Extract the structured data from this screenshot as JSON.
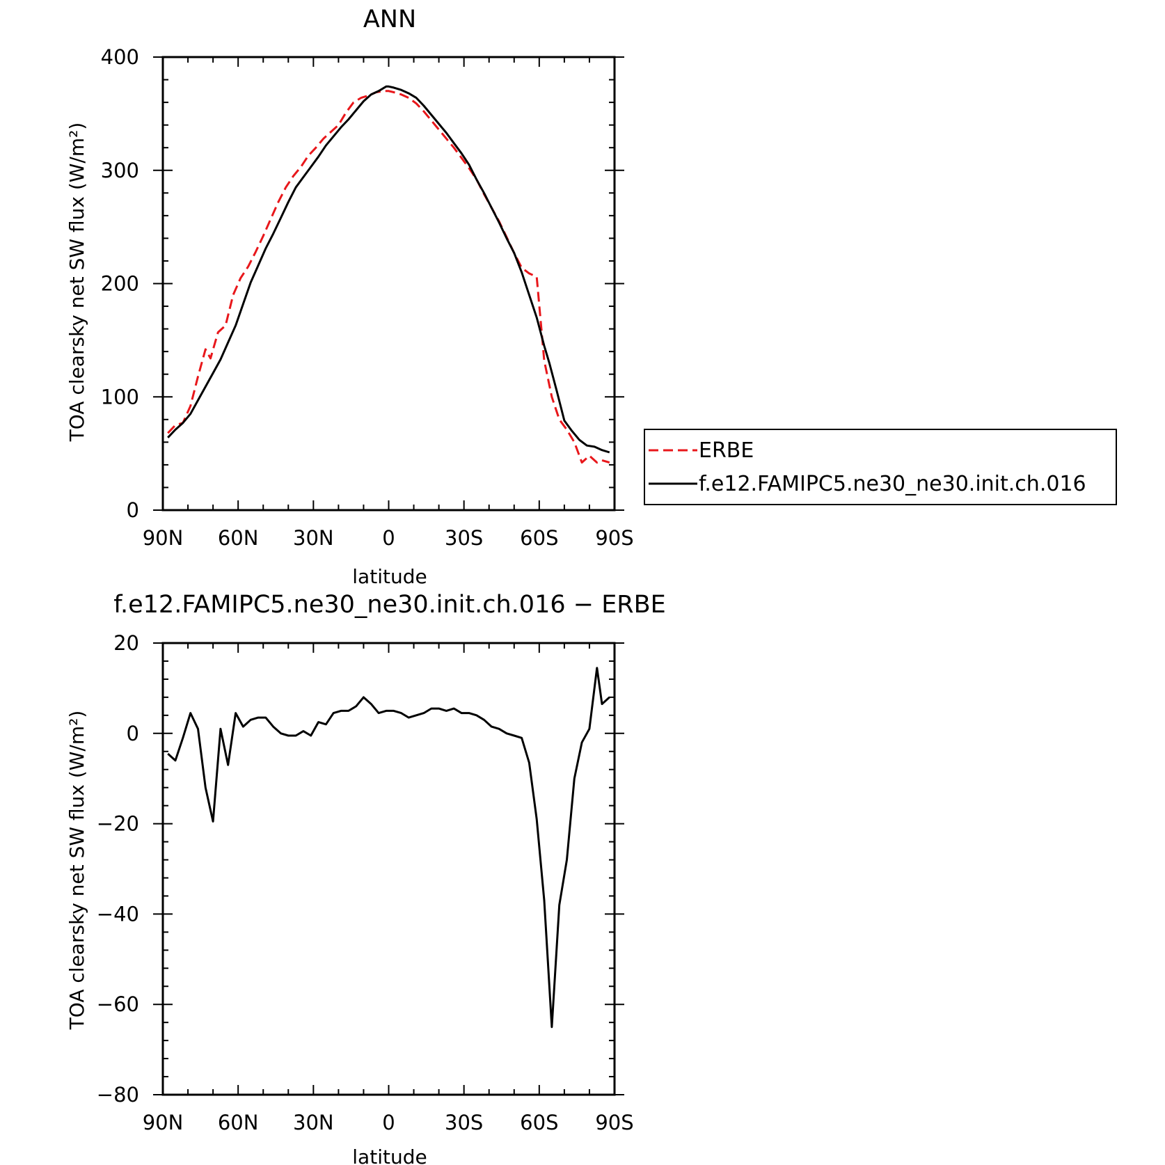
{
  "chart_data": [
    {
      "type": "line",
      "title": "ANN",
      "xlabel": "latitude",
      "ylabel": "TOA clearsky net SW flux (W/m²)",
      "xlim": [
        90,
        -90
      ],
      "ylim": [
        0,
        400
      ],
      "x_ticks": [
        90,
        60,
        30,
        0,
        -30,
        -60,
        -90
      ],
      "x_tick_labels": [
        "90N",
        "60N",
        "30N",
        "0",
        "30S",
        "60S",
        "90S"
      ],
      "y_ticks": [
        0,
        100,
        200,
        300,
        400
      ],
      "y_tick_labels": [
        "0",
        "100",
        "200",
        "300",
        "400"
      ],
      "grid": false,
      "legend_position": "right, outside plot",
      "series": [
        {
          "name": "ERBE",
          "color": "#e8171b",
          "style": "dashed",
          "x": [
            88,
            85,
            82,
            79,
            76,
            73,
            71,
            68,
            65,
            62,
            59,
            56,
            53,
            50,
            47,
            44,
            41,
            38,
            35,
            32,
            29,
            26,
            23,
            20,
            17,
            14,
            11,
            8,
            5,
            2,
            0,
            -2,
            -5,
            -8,
            -11,
            -14,
            -17,
            -20,
            -23,
            -26,
            -29,
            -32,
            -35,
            -38,
            -41,
            -44,
            -47,
            -50,
            -53,
            -56,
            -59,
            -62,
            -65,
            -68,
            -71,
            -74,
            -77,
            -80,
            -83,
            -85,
            -88
          ],
          "y": [
            68,
            75,
            77,
            92,
            118,
            142,
            134,
            157,
            163,
            190,
            205,
            215,
            228,
            242,
            257,
            272,
            285,
            295,
            303,
            313,
            320,
            328,
            334,
            340,
            351,
            360,
            364,
            366,
            369,
            370,
            370,
            369,
            367,
            364,
            359,
            352,
            344,
            336,
            328,
            320,
            311,
            302,
            292,
            279,
            267,
            255,
            241,
            227,
            214,
            209,
            206,
            132,
            100,
            80,
            71,
            60,
            42,
            48,
            42,
            44,
            42
          ]
        },
        {
          "name": "f.e12.FAMIPC5.ne30_ne30.init.ch.016",
          "color": "#000000",
          "style": "solid",
          "x": [
            88,
            85,
            82,
            79,
            76,
            73,
            70,
            67,
            64,
            61,
            58,
            55,
            52,
            49,
            46,
            43,
            40,
            37,
            34,
            31,
            28,
            25,
            22,
            19,
            16,
            13,
            10,
            7,
            4,
            1,
            0,
            -2,
            -5,
            -8,
            -11,
            -14,
            -17,
            -20,
            -23,
            -26,
            -29,
            -32,
            -35,
            -38,
            -41,
            -44,
            -47,
            -50,
            -53,
            -56,
            -59,
            -62,
            -64,
            -67,
            -70,
            -73,
            -76,
            -79,
            -82,
            -85,
            -88
          ],
          "y": [
            64,
            71,
            77,
            85,
            97,
            109,
            121,
            133,
            148,
            163,
            182,
            201,
            216,
            231,
            244,
            258,
            272,
            285,
            294,
            303,
            312,
            322,
            330,
            338,
            345,
            353,
            361,
            367,
            370,
            374,
            374,
            373,
            371,
            368,
            364,
            357,
            349,
            341,
            333,
            324,
            315,
            305,
            292,
            280,
            267,
            254,
            240,
            227,
            210,
            190,
            170,
            145,
            130,
            105,
            79,
            70,
            62,
            57,
            56,
            53,
            51
          ]
        }
      ]
    },
    {
      "type": "line",
      "title": "f.e12.FAMIPC5.ne30_ne30.init.ch.016 − ERBE",
      "xlabel": "latitude",
      "ylabel": "TOA clearsky net SW flux (W/m²)",
      "xlim": [
        90,
        -90
      ],
      "ylim": [
        -80,
        20
      ],
      "x_ticks": [
        90,
        60,
        30,
        0,
        -30,
        -60,
        -90
      ],
      "x_tick_labels": [
        "90N",
        "60N",
        "30N",
        "0",
        "30S",
        "60S",
        "90S"
      ],
      "y_ticks": [
        -80,
        -60,
        -40,
        -20,
        0,
        20
      ],
      "y_tick_labels": [
        "−80",
        "−60",
        "−40",
        "−20",
        "0",
        "20"
      ],
      "grid": false,
      "series": [
        {
          "color": "#000000",
          "style": "solid",
          "x": [
            88,
            85,
            82,
            79,
            76,
            73,
            70,
            67,
            64,
            61,
            58,
            55,
            52,
            49,
            46,
            43,
            40,
            37,
            34,
            31,
            28,
            25,
            22,
            19,
            16,
            13,
            10,
            7,
            4,
            1,
            -2,
            -5,
            -8,
            -11,
            -14,
            -17,
            -20,
            -23,
            -26,
            -29,
            -32,
            -35,
            -38,
            -41,
            -44,
            -47,
            -50,
            -53,
            -56,
            -59,
            -62,
            -65,
            -68,
            -71,
            -74,
            -77,
            -80,
            -83,
            -85,
            -88
          ],
          "y": [
            -4.5,
            -6,
            -1,
            4.5,
            1,
            -12,
            -19.5,
            1,
            -7,
            4.5,
            1.5,
            3,
            3.5,
            3.5,
            1.5,
            0,
            -0.5,
            -0.5,
            0.5,
            -0.5,
            2.5,
            2,
            4.5,
            5,
            5,
            6,
            8,
            6.5,
            4.5,
            5,
            5,
            4.5,
            3.5,
            4,
            4.5,
            5.5,
            5.5,
            5,
            5.5,
            4.5,
            4.5,
            4,
            3,
            1.5,
            1,
            0,
            -0.5,
            -1,
            -6.5,
            -19,
            -37,
            -65,
            -38,
            -28,
            -10,
            -2,
            1,
            14.5,
            6.5,
            8
          ]
        }
      ]
    }
  ]
}
